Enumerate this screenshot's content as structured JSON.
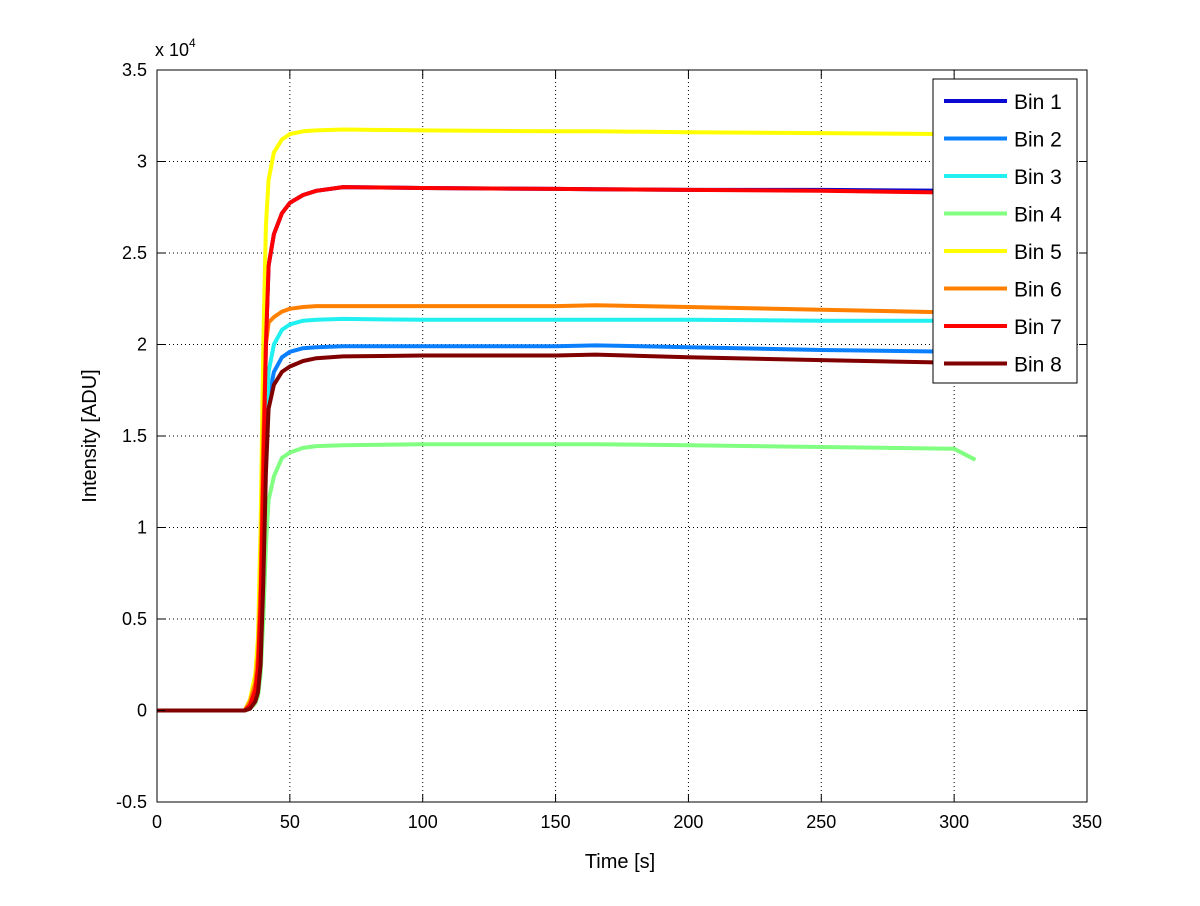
{
  "chart_data": {
    "type": "line",
    "title": "",
    "xlabel": "Time [s]",
    "ylabel": "Intensity [ADU]",
    "y_multiplier_label": "x 10",
    "y_multiplier_exp": "4",
    "xlim": [
      0,
      350
    ],
    "ylim": [
      -5000,
      35000
    ],
    "xticks": [
      0,
      50,
      100,
      150,
      200,
      250,
      300,
      350
    ],
    "xtick_labels": [
      "0",
      "50",
      "100",
      "150",
      "200",
      "250",
      "300",
      "350"
    ],
    "yticks": [
      -5000,
      0,
      5000,
      10000,
      15000,
      20000,
      25000,
      30000,
      35000
    ],
    "ytick_labels": [
      "-0.5",
      "0",
      "0.5",
      "1",
      "1.5",
      "2",
      "2.5",
      "3",
      "3.5"
    ],
    "grid": true,
    "legend_position": "top-right",
    "x": [
      0,
      33,
      35,
      37,
      38,
      39,
      40,
      41,
      42,
      44,
      47,
      50,
      55,
      60,
      70,
      100,
      150,
      165,
      200,
      250,
      300,
      308
    ],
    "series": [
      {
        "name": "Bin 1",
        "color": "#0a0ad0",
        "values": [
          0,
          0,
          286,
          1144,
          2288,
          5720,
          12870,
          20020,
          24310,
          26026,
          27170,
          27742,
          28171,
          28400,
          28600,
          28550,
          28500,
          28480,
          28450,
          28450,
          28400,
          28400
        ]
      },
      {
        "name": "Bin 2",
        "color": "#0a80ff",
        "values": [
          0,
          0,
          150,
          600,
          1200,
          3000,
          8000,
          14000,
          17000,
          18500,
          19300,
          19600,
          19800,
          19850,
          19900,
          19900,
          19900,
          19950,
          19850,
          19700,
          19600,
          19600
        ]
      },
      {
        "name": "Bin 3",
        "color": "#20f0f0",
        "values": [
          0,
          0,
          200,
          800,
          1600,
          4000,
          9000,
          15000,
          18500,
          20000,
          20800,
          21100,
          21300,
          21350,
          21400,
          21350,
          21350,
          21350,
          21350,
          21300,
          21300,
          21300
        ]
      },
      {
        "name": "Bin 4",
        "color": "#80ff80",
        "values": [
          0,
          0,
          100,
          400,
          800,
          2000,
          5000,
          9000,
          11500,
          12800,
          13800,
          14100,
          14350,
          14450,
          14500,
          14550,
          14550,
          14550,
          14500,
          14400,
          14300,
          13700
        ]
      },
      {
        "name": "Bin 5",
        "color": "#ffff00",
        "values": [
          0,
          0,
          600,
          2000,
          4000,
          10000,
          20000,
          26500,
          29000,
          30500,
          31200,
          31500,
          31650,
          31700,
          31750,
          31700,
          31650,
          31650,
          31600,
          31550,
          31500,
          31500
        ]
      },
      {
        "name": "Bin 6",
        "color": "#ff8000",
        "values": [
          0,
          0,
          500,
          1500,
          3000,
          7000,
          15000,
          20000,
          21200,
          21500,
          21800,
          21950,
          22050,
          22100,
          22100,
          22100,
          22100,
          22150,
          22050,
          21900,
          21750,
          21700
        ]
      },
      {
        "name": "Bin 7",
        "color": "#ff0000",
        "values": [
          0,
          0,
          286,
          1144,
          2288,
          5720,
          12870,
          20020,
          24310,
          26026,
          27170,
          27742,
          28171,
          28400,
          28600,
          28550,
          28500,
          28480,
          28450,
          28400,
          28300,
          28300
        ]
      },
      {
        "name": "Bin 8",
        "color": "#800000",
        "values": [
          0,
          0,
          100,
          500,
          1000,
          2500,
          7000,
          13000,
          16500,
          17800,
          18500,
          18800,
          19100,
          19250,
          19350,
          19400,
          19400,
          19450,
          19300,
          19150,
          19000,
          18950
        ]
      }
    ]
  }
}
